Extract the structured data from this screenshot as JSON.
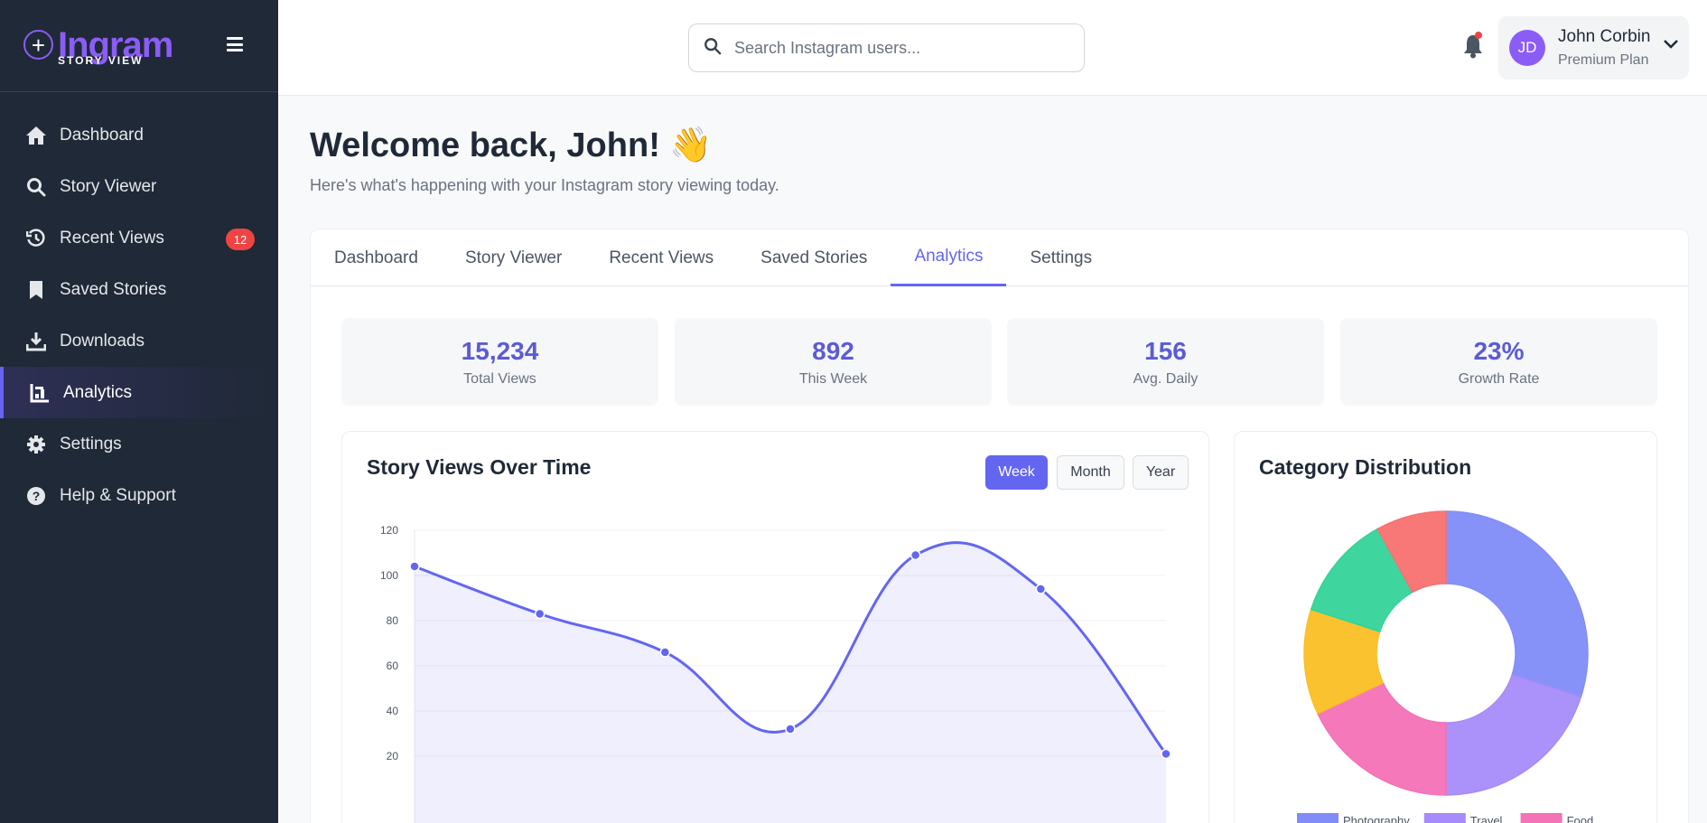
{
  "brand": {
    "name": "Ingram",
    "sub": "STORY VIEW"
  },
  "sidebar": {
    "items": [
      {
        "label": "Dashboard",
        "icon": "home-icon"
      },
      {
        "label": "Story Viewer",
        "icon": "search-icon"
      },
      {
        "label": "Recent Views",
        "icon": "history-icon",
        "badge": "12"
      },
      {
        "label": "Saved Stories",
        "icon": "bookmark-icon"
      },
      {
        "label": "Downloads",
        "icon": "download-icon"
      },
      {
        "label": "Analytics",
        "icon": "chart-icon",
        "active": true
      },
      {
        "label": "Settings",
        "icon": "gear-icon"
      },
      {
        "label": "Help & Support",
        "icon": "help-icon"
      }
    ]
  },
  "topbar": {
    "search_placeholder": "Search Instagram users...",
    "user": {
      "initials": "JD",
      "name": "John Corbin",
      "plan": "Premium Plan"
    }
  },
  "main": {
    "welcome": "Welcome back, John! 👋",
    "subtitle": "Here's what's happening with your Instagram story viewing today.",
    "tabs": [
      "Dashboard",
      "Story Viewer",
      "Recent Views",
      "Saved Stories",
      "Analytics",
      "Settings"
    ],
    "active_tab": "Analytics",
    "stats": [
      {
        "value": "15,234",
        "label": "Total Views"
      },
      {
        "value": "892",
        "label": "This Week"
      },
      {
        "value": "156",
        "label": "Avg. Daily"
      },
      {
        "value": "23%",
        "label": "Growth Rate"
      }
    ],
    "views_card": {
      "title": "Story Views Over Time",
      "ranges": [
        "Week",
        "Month",
        "Year"
      ],
      "active_range": "Week"
    },
    "category_card": {
      "title": "Category Distribution"
    }
  },
  "colors": {
    "accent": "#6366f1",
    "sidebar": "#1f2937",
    "brand": "#8b5cf6",
    "badge": "#ef4444"
  },
  "chart_data": [
    {
      "type": "area",
      "title": "Story Views Over Time",
      "x": [
        1,
        2,
        3,
        4,
        5,
        6,
        7
      ],
      "series": [
        {
          "values": [
            104,
            83,
            66,
            32,
            109,
            94,
            21
          ]
        }
      ],
      "yticks": [
        20,
        40,
        60,
        80,
        100,
        120
      ],
      "ylim": [
        0,
        120
      ],
      "grid": true,
      "color": "#6366f1"
    },
    {
      "type": "pie",
      "title": "Category Distribution",
      "slices": [
        {
          "name": "Photography",
          "value": 30,
          "color": "#818cf8"
        },
        {
          "name": "Travel",
          "value": 20,
          "color": "#a78bfa"
        },
        {
          "name": "Food",
          "value": 18,
          "color": "#f472b6"
        },
        {
          "name": "",
          "value": 12,
          "color": "#fbbf24"
        },
        {
          "name": "",
          "value": 12,
          "color": "#34d399"
        },
        {
          "name": "",
          "value": 8,
          "color": "#f87171"
        }
      ],
      "legend": "bottom"
    }
  ]
}
